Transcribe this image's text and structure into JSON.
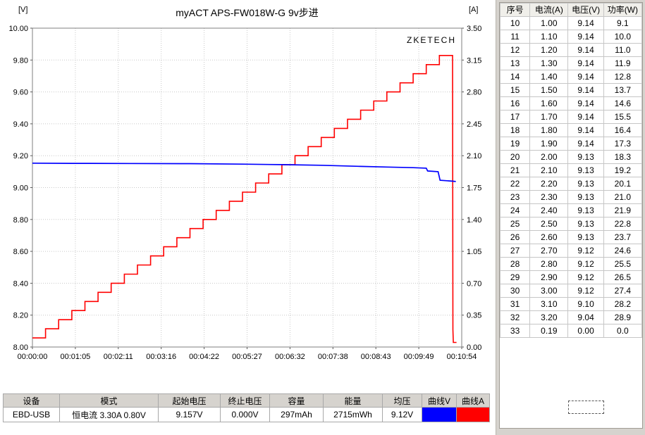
{
  "chart_data": {
    "type": "line",
    "title": "myACT APS-FW018W-G 9v步进",
    "watermark": "ZKETECH",
    "x_axis": {
      "labels": [
        "00:00:00",
        "00:01:05",
        "00:02:11",
        "00:03:16",
        "00:04:22",
        "00:05:27",
        "00:06:32",
        "00:07:38",
        "00:08:43",
        "00:09:49",
        "00:10:54"
      ],
      "max_seconds": 654
    },
    "y_left": {
      "label": "[V]",
      "min": 8.0,
      "max": 10.0,
      "ticks": [
        "10.00",
        "9.80",
        "9.60",
        "9.40",
        "9.20",
        "9.00",
        "8.80",
        "8.60",
        "8.40",
        "8.20",
        "8.00"
      ]
    },
    "y_right": {
      "label": "[A]",
      "min": 0.0,
      "max": 3.5,
      "ticks": [
        "3.50",
        "3.15",
        "2.80",
        "2.45",
        "2.10",
        "1.75",
        "1.40",
        "1.05",
        "0.70",
        "0.35",
        "0.00"
      ]
    },
    "series": {
      "voltage": {
        "name": "曲线V",
        "color": "#0000ff",
        "axis": "left",
        "points": [
          [
            0,
            9.153
          ],
          [
            60,
            9.152
          ],
          [
            150,
            9.151
          ],
          [
            240,
            9.15
          ],
          [
            320,
            9.147
          ],
          [
            380,
            9.144
          ],
          [
            440,
            9.14
          ],
          [
            500,
            9.133
          ],
          [
            540,
            9.129
          ],
          [
            580,
            9.125
          ],
          [
            600,
            9.122
          ],
          [
            602,
            9.104
          ],
          [
            618,
            9.1
          ],
          [
            621,
            9.046
          ],
          [
            640,
            9.04
          ],
          [
            645,
            9.038
          ]
        ]
      },
      "current": {
        "name": "曲线A",
        "color": "#ff0000",
        "axis": "right",
        "start_amps": 0.1,
        "step_amps": 0.1,
        "step_seconds": 20,
        "steps": 32,
        "cutoff": [
          [
            640,
            3.2
          ],
          [
            640.6,
            0.19
          ],
          [
            641.2,
            0.05
          ],
          [
            646,
            0.05
          ]
        ]
      }
    }
  },
  "side_table": {
    "headers": [
      "序号",
      "电流(A)",
      "电压(V)",
      "功率(W)"
    ],
    "rows": [
      [
        "10",
        "1.00",
        "9.14",
        "9.1"
      ],
      [
        "11",
        "1.10",
        "9.14",
        "10.0"
      ],
      [
        "12",
        "1.20",
        "9.14",
        "11.0"
      ],
      [
        "13",
        "1.30",
        "9.14",
        "11.9"
      ],
      [
        "14",
        "1.40",
        "9.14",
        "12.8"
      ],
      [
        "15",
        "1.50",
        "9.14",
        "13.7"
      ],
      [
        "16",
        "1.60",
        "9.14",
        "14.6"
      ],
      [
        "17",
        "1.70",
        "9.14",
        "15.5"
      ],
      [
        "18",
        "1.80",
        "9.14",
        "16.4"
      ],
      [
        "19",
        "1.90",
        "9.14",
        "17.3"
      ],
      [
        "20",
        "2.00",
        "9.13",
        "18.3"
      ],
      [
        "21",
        "2.10",
        "9.13",
        "19.2"
      ],
      [
        "22",
        "2.20",
        "9.13",
        "20.1"
      ],
      [
        "23",
        "2.30",
        "9.13",
        "21.0"
      ],
      [
        "24",
        "2.40",
        "9.13",
        "21.9"
      ],
      [
        "25",
        "2.50",
        "9.13",
        "22.8"
      ],
      [
        "26",
        "2.60",
        "9.13",
        "23.7"
      ],
      [
        "27",
        "2.70",
        "9.12",
        "24.6"
      ],
      [
        "28",
        "2.80",
        "9.12",
        "25.5"
      ],
      [
        "29",
        "2.90",
        "9.12",
        "26.5"
      ],
      [
        "30",
        "3.00",
        "9.12",
        "27.4"
      ],
      [
        "31",
        "3.10",
        "9.10",
        "28.2"
      ],
      [
        "32",
        "3.20",
        "9.04",
        "28.9"
      ],
      [
        "33",
        "0.19",
        "0.00",
        "0.0"
      ]
    ]
  },
  "status_bar": {
    "headers": [
      "设备",
      "模式",
      "起始电压",
      "终止电压",
      "容量",
      "能量",
      "均压",
      "曲线V",
      "曲线A"
    ],
    "values": {
      "device": "EBD-USB",
      "mode": "恒电流  3.30A  0.80V",
      "start_voltage": "9.157V",
      "end_voltage": "0.000V",
      "capacity": "297mAh",
      "energy": "2715mWh",
      "avg_voltage": "9.12V"
    },
    "curve_v_color": "#0000ff",
    "curve_a_color": "#ff0000"
  }
}
